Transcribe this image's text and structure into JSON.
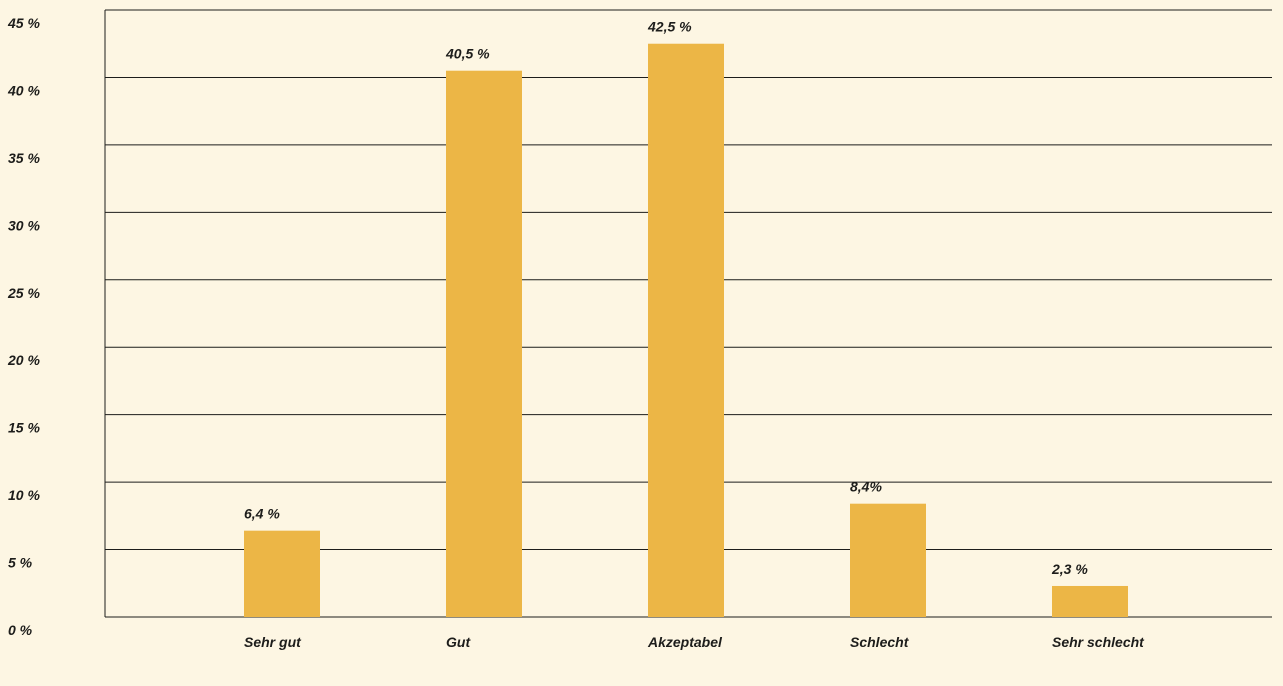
{
  "chart_data": {
    "type": "bar",
    "categories": [
      "Sehr gut",
      "Gut",
      "Akzeptabel",
      "Schlecht",
      "Sehr schlecht"
    ],
    "values": [
      6.4,
      40.5,
      42.5,
      8.4,
      2.3
    ],
    "data_labels": [
      "6,4 %",
      "40,5 %",
      "42,5 %",
      "8,4%",
      "2,3 %"
    ],
    "y_ticks": [
      0,
      5,
      10,
      15,
      20,
      25,
      30,
      35,
      40,
      45
    ],
    "y_tick_labels": [
      "0 %",
      "5 %",
      "10 %",
      "15 %",
      "20 %",
      "25 %",
      "30 %",
      "35 %",
      "40 %",
      "45 %"
    ],
    "ylim": [
      0,
      45
    ],
    "grid": true,
    "legend": "none",
    "title": "",
    "xlabel": "",
    "ylabel": "",
    "colors": {
      "background": "#fdf6e3",
      "bar": "#ecb646",
      "grid": "#1d1d1b",
      "text": "#1d1d1b"
    }
  }
}
